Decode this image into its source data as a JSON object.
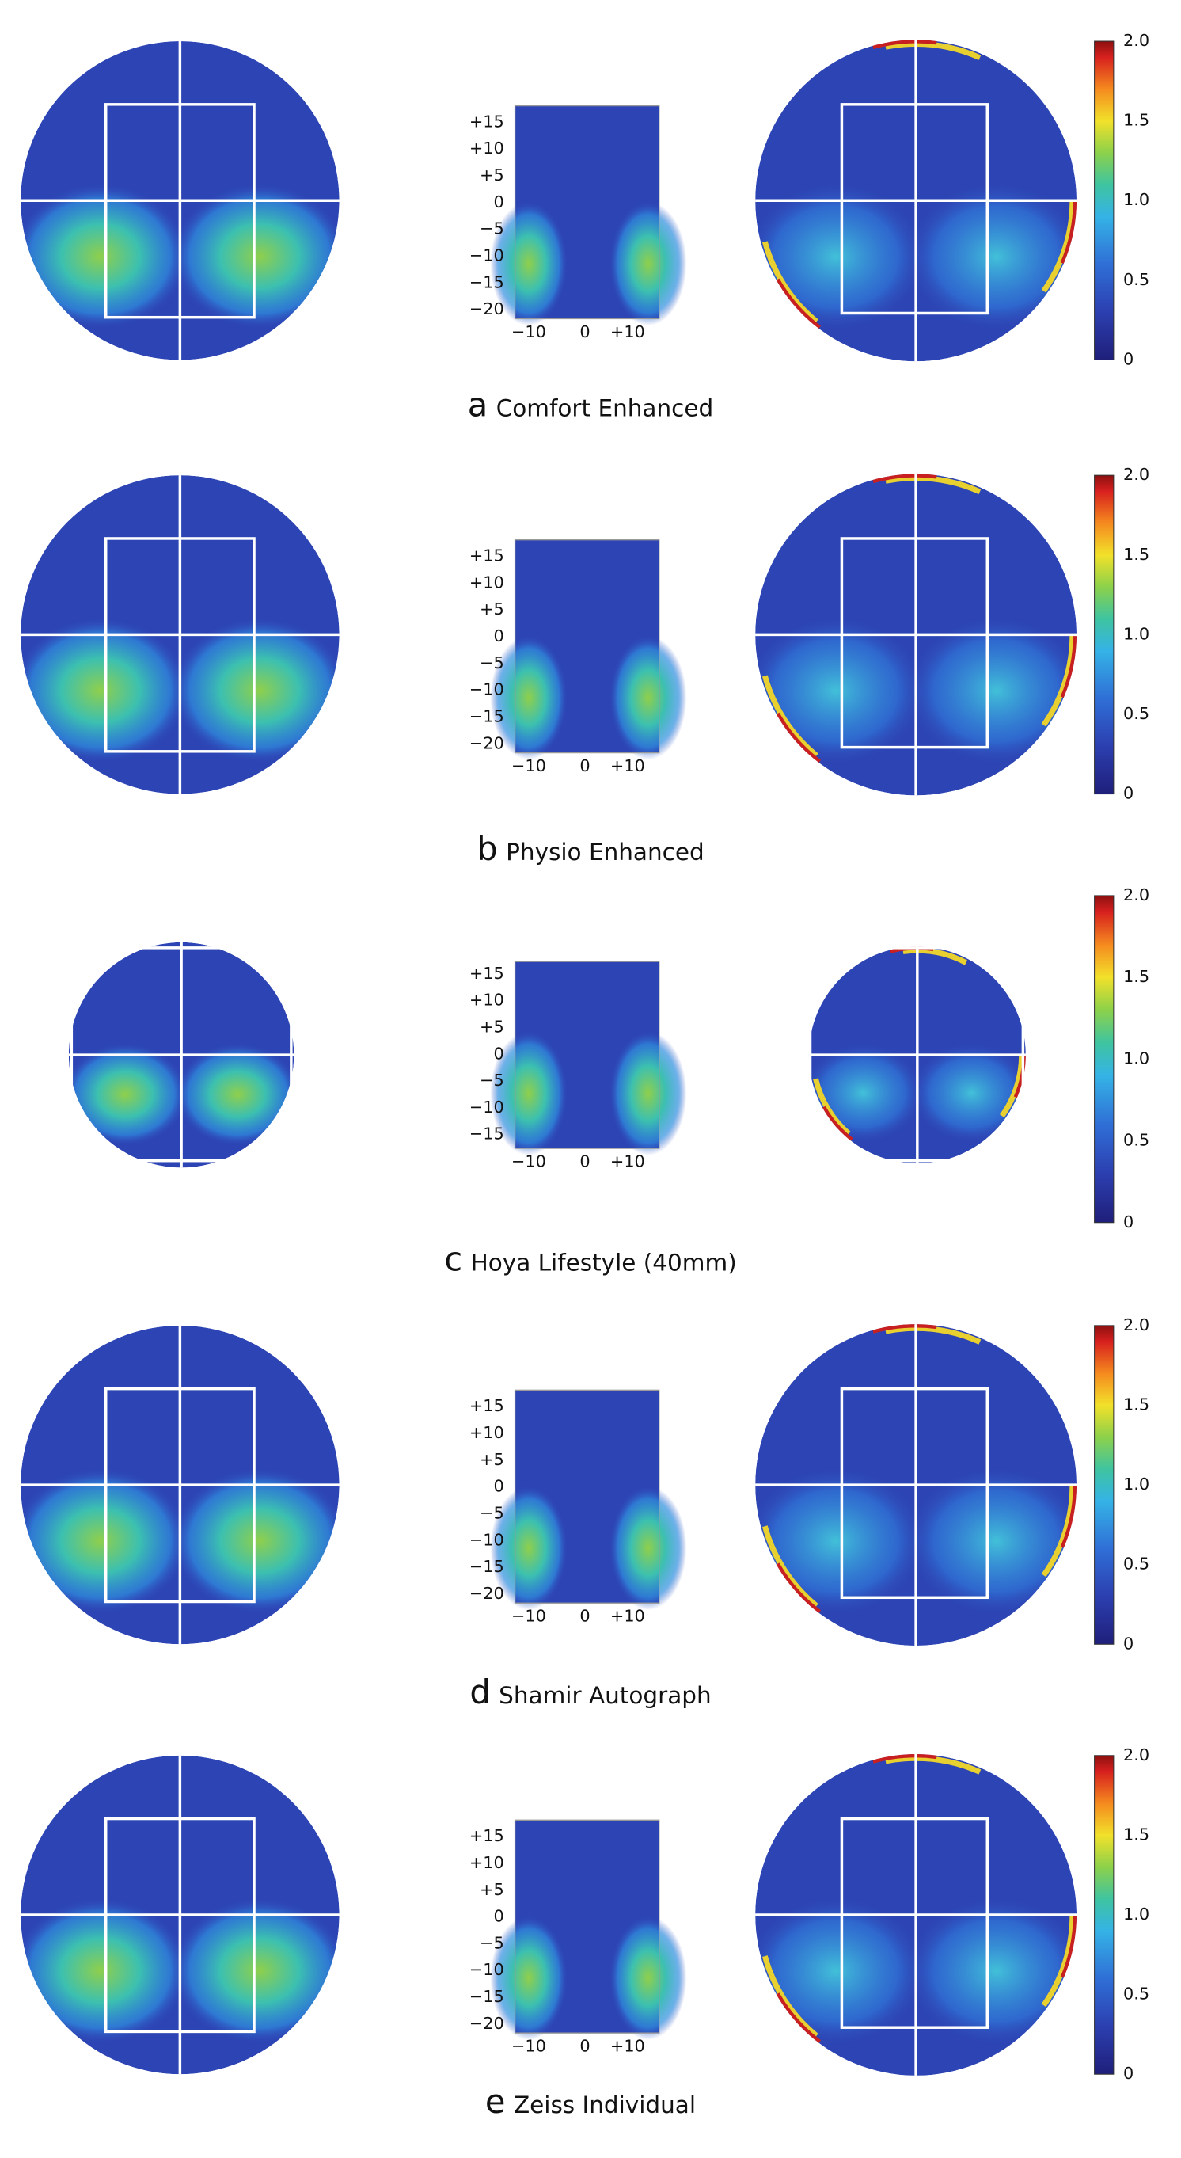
{
  "panels": [
    {
      "letter": "a",
      "name": "Comfort Enhanced",
      "y_ticks": [
        "+15",
        "+10",
        "+5",
        "0",
        "−5",
        "−10",
        "−15",
        "−20"
      ],
      "x_ticks": [
        "−10",
        "0",
        "+10"
      ],
      "colorbar_ticks": [
        "2.0",
        "1.5",
        "1.0",
        "0.5",
        "0"
      ]
    },
    {
      "letter": "b",
      "name": "Physio Enhanced",
      "y_ticks": [
        "+15",
        "+10",
        "+5",
        "0",
        "−5",
        "−10",
        "−15",
        "−20"
      ],
      "x_ticks": [
        "−10",
        "0",
        "+10"
      ],
      "colorbar_ticks": [
        "2.0",
        "1.5",
        "1.0",
        "0.5",
        "0"
      ]
    },
    {
      "letter": "c",
      "name": "Hoya Lifestyle (40mm)",
      "y_ticks": [
        "+15",
        "+10",
        "+5",
        "0",
        "−5",
        "−10",
        "−15"
      ],
      "x_ticks": [
        "−10",
        "0",
        "+10"
      ],
      "colorbar_ticks": [
        "2.0",
        "1.5",
        "1.0",
        "0.5",
        "0"
      ]
    },
    {
      "letter": "d",
      "name": "Shamir Autograph",
      "y_ticks": [
        "+15",
        "+10",
        "+5",
        "0",
        "−5",
        "−10",
        "−15",
        "−20"
      ],
      "x_ticks": [
        "−10",
        "0",
        "+10"
      ],
      "colorbar_ticks": [
        "2.0",
        "1.5",
        "1.0",
        "0.5",
        "0"
      ]
    },
    {
      "letter": "e",
      "name": "Zeiss Individual",
      "y_ticks": [
        "+15",
        "+10",
        "+5",
        "0",
        "−5",
        "−10",
        "−15",
        "−20"
      ],
      "x_ticks": [
        "−10",
        "0",
        "+10"
      ],
      "colorbar_ticks": [
        "2.0",
        "1.5",
        "1.0",
        "0.5",
        "0"
      ]
    }
  ]
}
